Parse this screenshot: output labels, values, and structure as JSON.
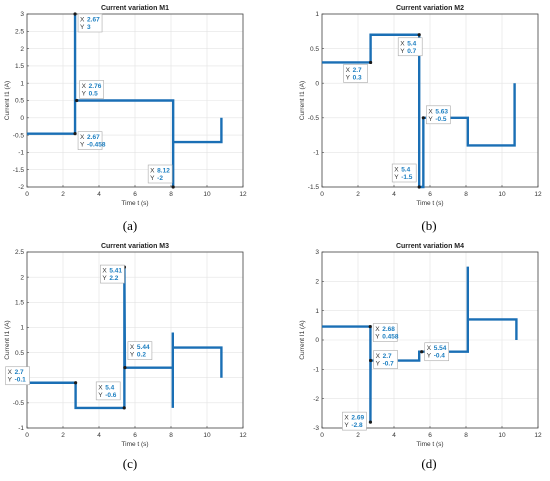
{
  "chart_data": [
    {
      "type": "line",
      "caption": "(a)",
      "title": "Current variation M1",
      "xlabel": "Time t (s)",
      "ylabel": "Current I1 (A)",
      "xlim": [
        0,
        12
      ],
      "ylim": [
        -2,
        3
      ],
      "xticks": [
        0,
        2,
        4,
        6,
        8,
        10,
        12
      ],
      "yticks": [
        -2,
        -1.5,
        -1,
        -0.5,
        0,
        0.5,
        1,
        1.5,
        2,
        2.5,
        3
      ],
      "grid": true,
      "line_color": "#1a6fb5",
      "series": [
        {
          "x": [
            0,
            2.67,
            2.67,
            2.67,
            2.76,
            8.12,
            8.12,
            8.12,
            10.8,
            10.8
          ],
          "y": [
            -0.458,
            -0.458,
            3,
            0.5,
            0.5,
            0.5,
            -2,
            -0.7,
            -0.7,
            0
          ]
        }
      ],
      "datatips": [
        {
          "x_label": "X",
          "y_label": "Y",
          "x": "2.67",
          "y": "3",
          "px": 2.67,
          "py": 3
        },
        {
          "x_label": "X",
          "y_label": "Y",
          "x": "2.76",
          "y": "0.5",
          "px": 2.76,
          "py": 0.5
        },
        {
          "x_label": "X",
          "y_label": "Y",
          "x": "2.67",
          "y": "-0.458",
          "px": 2.67,
          "py": -0.458
        },
        {
          "x_label": "X",
          "y_label": "Y",
          "x": "8.12",
          "y": "-2",
          "px": 8.12,
          "py": -2
        }
      ]
    },
    {
      "type": "line",
      "caption": "(b)",
      "title": "Current variation M2",
      "xlabel": "Time t (s)",
      "ylabel": "Current I1 (A)",
      "xlim": [
        0,
        12
      ],
      "ylim": [
        -1.5,
        1
      ],
      "xticks": [
        0,
        2,
        4,
        6,
        8,
        10,
        12
      ],
      "yticks": [
        -1.5,
        -1,
        -0.5,
        0,
        0.5,
        1
      ],
      "grid": true,
      "line_color": "#1a6fb5",
      "series": [
        {
          "x": [
            0,
            2.7,
            2.7,
            5.4,
            5.4,
            5.63,
            5.63,
            8.1,
            8.1,
            10.7,
            10.7
          ],
          "y": [
            0.3,
            0.3,
            0.7,
            0.7,
            -1.5,
            -1.5,
            -0.5,
            -0.5,
            -0.9,
            -0.9,
            0
          ]
        }
      ],
      "datatips": [
        {
          "x_label": "X",
          "y_label": "Y",
          "x": "2.7",
          "y": "0.3",
          "px": 2.7,
          "py": 0.3
        },
        {
          "x_label": "X",
          "y_label": "Y",
          "x": "5.4",
          "y": "0.7",
          "px": 5.4,
          "py": 0.7
        },
        {
          "x_label": "X",
          "y_label": "Y",
          "x": "5.63",
          "y": "-0.5",
          "px": 5.63,
          "py": -0.5
        },
        {
          "x_label": "X",
          "y_label": "Y",
          "x": "5.4",
          "y": "-1.5",
          "px": 5.4,
          "py": -1.5
        }
      ]
    },
    {
      "type": "line",
      "caption": "(c)",
      "title": "Current variation M3",
      "xlabel": "Time t (s)",
      "ylabel": "Current I1 (A)",
      "xlim": [
        0,
        12
      ],
      "ylim": [
        -1,
        2.5
      ],
      "xticks": [
        0,
        2,
        4,
        6,
        8,
        10,
        12
      ],
      "yticks": [
        -1,
        -0.5,
        0,
        0.5,
        1,
        1.5,
        2,
        2.5
      ],
      "grid": true,
      "line_color": "#1a6fb5",
      "series": [
        {
          "x": [
            0,
            2.7,
            2.7,
            5.4,
            5.41,
            5.41,
            5.44,
            8.1,
            8.1,
            8.1,
            8.1,
            10.8,
            10.8
          ],
          "y": [
            -0.1,
            -0.1,
            -0.6,
            -0.6,
            -0.6,
            2.2,
            0.2,
            0.2,
            0.9,
            -0.6,
            0.6,
            0.6,
            0
          ]
        }
      ],
      "datatips": [
        {
          "x_label": "X",
          "y_label": "Y",
          "x": "5.41",
          "y": "2.2",
          "px": 5.41,
          "py": 2.2
        },
        {
          "x_label": "X",
          "y_label": "Y",
          "x": "5.44",
          "y": "0.2",
          "px": 5.44,
          "py": 0.2
        },
        {
          "x_label": "X",
          "y_label": "Y",
          "x": "2.7",
          "y": "-0.1",
          "px": 2.7,
          "py": -0.1
        },
        {
          "x_label": "X",
          "y_label": "Y",
          "x": "5.4",
          "y": "-0.6",
          "px": 5.4,
          "py": -0.6
        }
      ]
    },
    {
      "type": "line",
      "caption": "(d)",
      "title": "Current variation M4",
      "xlabel": "Time t (s)",
      "ylabel": "Current I1 (A)",
      "xlim": [
        0,
        12
      ],
      "ylim": [
        -3,
        3
      ],
      "xticks": [
        0,
        2,
        4,
        6,
        8,
        10,
        12
      ],
      "yticks": [
        -3,
        -2,
        -1,
        0,
        1,
        2,
        3
      ],
      "grid": true,
      "line_color": "#1a6fb5",
      "series": [
        {
          "x": [
            0,
            2.68,
            2.68,
            2.69,
            2.69,
            2.7,
            5.4,
            5.4,
            5.54,
            8.1,
            8.1,
            8.1,
            10.8,
            10.8
          ],
          "y": [
            0.458,
            0.458,
            0.458,
            0.458,
            -2.8,
            -0.7,
            -0.7,
            -0.4,
            -0.4,
            -0.4,
            2.5,
            0.7,
            0.7,
            0
          ]
        }
      ],
      "datatips": [
        {
          "x_label": "X",
          "y_label": "Y",
          "x": "2.68",
          "y": "0.458",
          "px": 2.68,
          "py": 0.458
        },
        {
          "x_label": "X",
          "y_label": "Y",
          "x": "2.7",
          "y": "-0.7",
          "px": 2.7,
          "py": -0.7
        },
        {
          "x_label": "X",
          "y_label": "Y",
          "x": "5.54",
          "y": "-0.4",
          "px": 5.54,
          "py": -0.4
        },
        {
          "x_label": "X",
          "y_label": "Y",
          "x": "2.69",
          "y": "-2.8",
          "px": 2.69,
          "py": -2.8
        }
      ]
    }
  ]
}
